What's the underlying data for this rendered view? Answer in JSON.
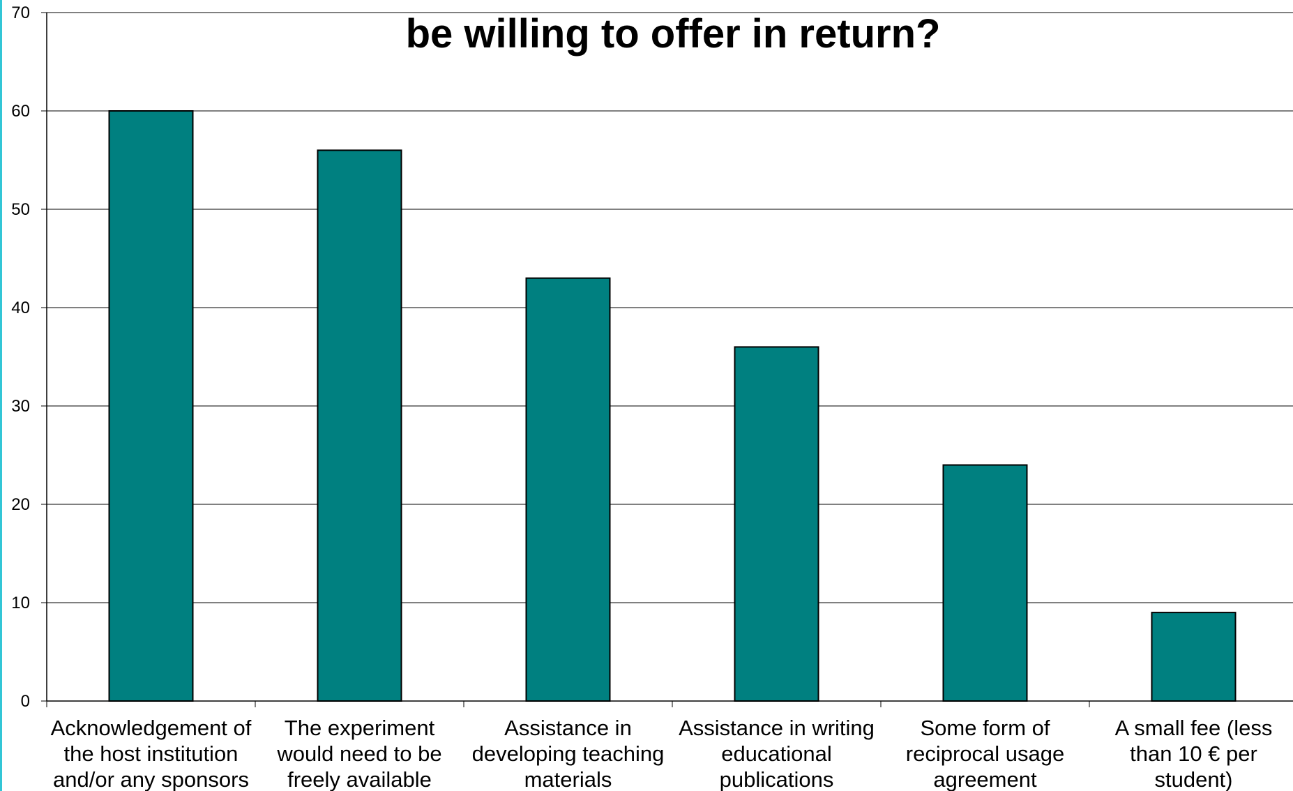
{
  "chart_data": {
    "type": "bar",
    "title": "be willing to offer in return?",
    "categories": [
      [
        "Acknowledgement of",
        "the host institution",
        "and/or any sponsors"
      ],
      [
        "The experiment",
        "would need to be",
        "freely available"
      ],
      [
        "Assistance in",
        "developing teaching",
        "materials"
      ],
      [
        "Assistance in writing",
        "educational",
        "publications"
      ],
      [
        "Some form of",
        "reciprocal usage",
        "agreement"
      ],
      [
        "A small fee (less",
        "than 10 € per",
        "student)"
      ]
    ],
    "values": [
      60,
      56,
      43,
      36,
      24,
      9
    ],
    "ylim": [
      0,
      70
    ],
    "yticks": [
      0,
      10,
      20,
      30,
      40,
      50,
      60,
      70
    ],
    "grid": true,
    "colors": {
      "bar": "#008080",
      "bar_edge": "#000000",
      "grid": "#000000"
    }
  }
}
